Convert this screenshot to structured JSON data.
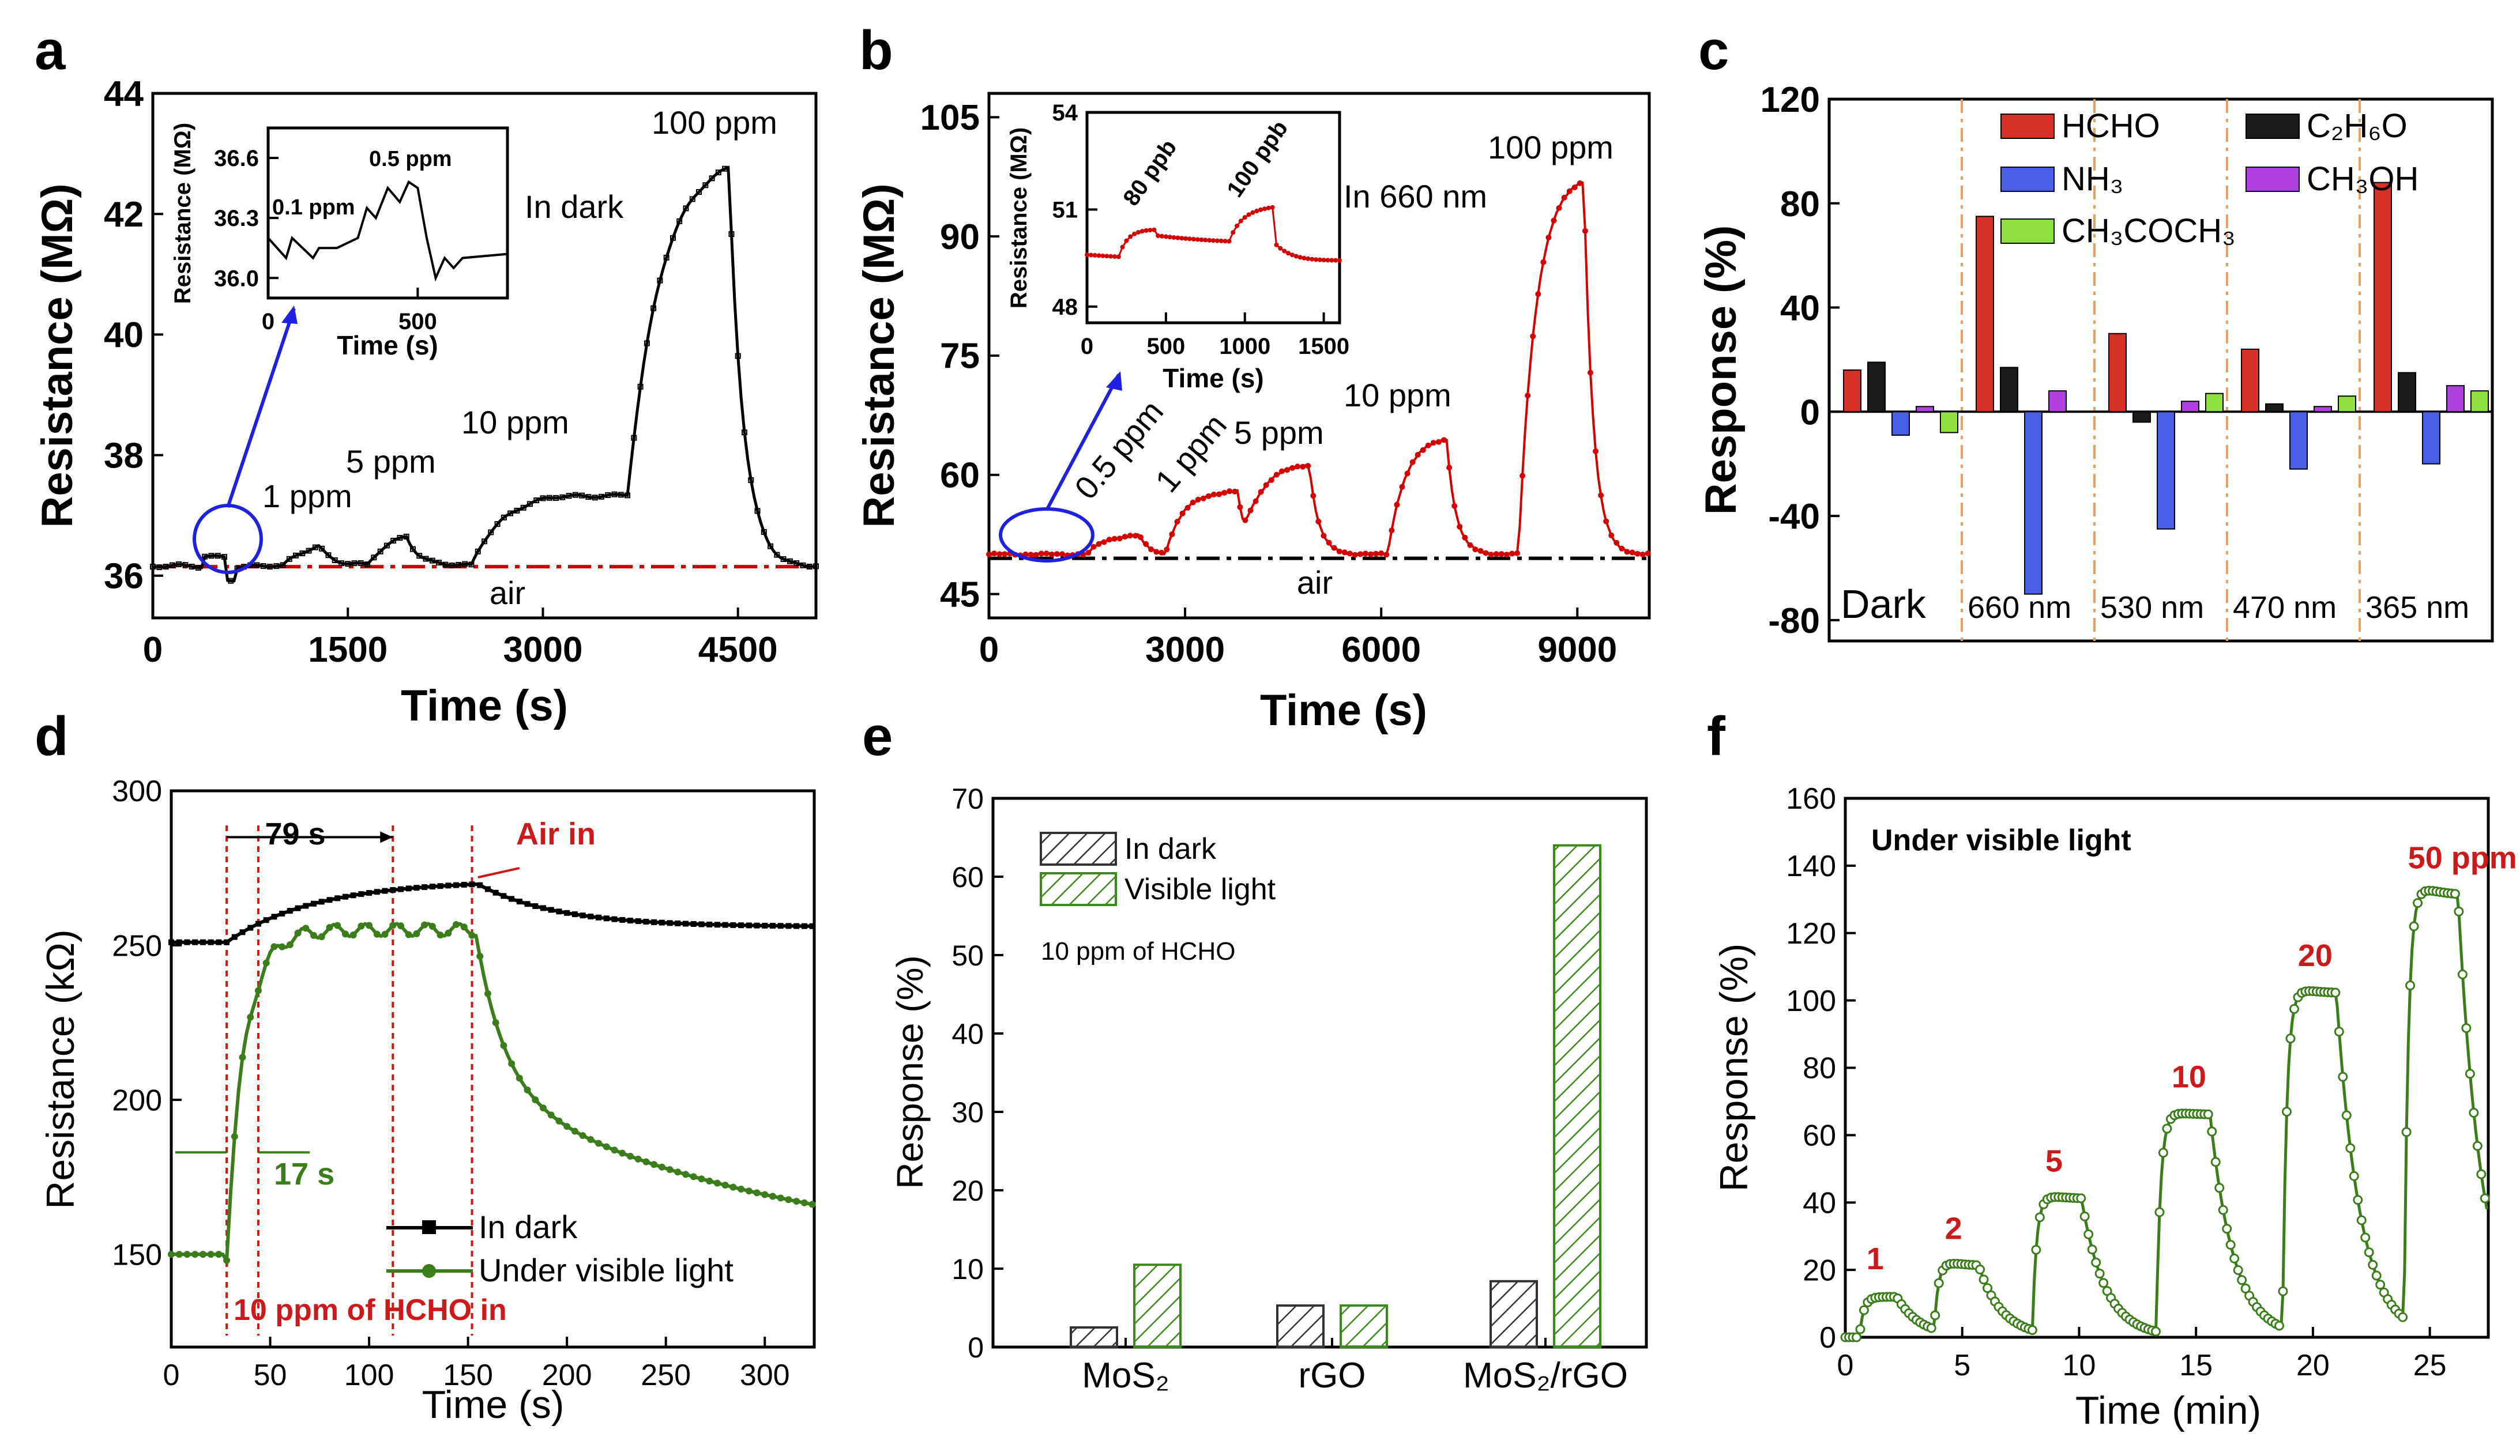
{
  "panel_letters": [
    "a",
    "b",
    "c",
    "d",
    "e",
    "f"
  ],
  "chart_data": [
    {
      "id": "a",
      "type": "line",
      "title": "",
      "xlabel": "Time (s)",
      "ylabel": "Resistance (MΩ)",
      "xlim": [
        0,
        5100
      ],
      "ylim": [
        35.3,
        44
      ],
      "xticks": [
        0,
        1500,
        3000,
        4500
      ],
      "yticks": [
        36,
        38,
        40,
        42,
        44
      ],
      "series_color": "#000000",
      "baseline": {
        "value": 36.15,
        "label": "air",
        "color": "#cc0000"
      },
      "annotations": [
        "1 ppm",
        "5 ppm",
        "10 ppm",
        "100 ppm",
        "In dark"
      ],
      "pulses": [
        {
          "t0": 1000,
          "t1": 1280,
          "peak": 0.5
        },
        {
          "t0": 1650,
          "t1": 1950,
          "peak": 0.7
        },
        {
          "t0": 2450,
          "t1": 3650,
          "peak": 1.2
        },
        {
          "t0": 3650,
          "t1": 4430,
          "peak": 6.8
        }
      ],
      "inset": {
        "xlabel": "Time (s)",
        "ylabel": "Resistance (MΩ)",
        "xlim": [
          0,
          800
        ],
        "ylim": [
          35.9,
          36.75
        ],
        "xticks": [
          0,
          500
        ],
        "yticks": [
          36.0,
          36.3,
          36.6
        ],
        "labels": [
          "0.1 ppm",
          "0.5 ppm"
        ]
      }
    },
    {
      "id": "b",
      "type": "line",
      "title": "",
      "xlabel": "Time (s)",
      "ylabel": "Resistance (MΩ)",
      "xlim": [
        0,
        10100
      ],
      "ylim": [
        42,
        108
      ],
      "xticks": [
        0,
        3000,
        6000,
        9000
      ],
      "yticks": [
        45,
        60,
        75,
        90,
        105
      ],
      "series_color": "#d40000",
      "baseline": {
        "value": 49.5,
        "label": "air",
        "color": "#000000"
      },
      "annotations": [
        "0.5 ppm",
        "1 ppm",
        "5 ppm",
        "10 ppm",
        "100 ppm",
        "In 660 nm"
      ],
      "pulses": [
        {
          "t0": 1500,
          "t1": 2300,
          "peak": 2.5
        },
        {
          "t0": 2700,
          "t1": 3800,
          "peak": 8
        },
        {
          "t0": 3900,
          "t1": 4900,
          "peak": 11.5
        },
        {
          "t0": 6100,
          "t1": 7000,
          "peak": 15
        },
        {
          "t0": 8100,
          "t1": 9100,
          "peak": 48
        }
      ],
      "inset": {
        "xlabel": "Time (s)",
        "ylabel": "Resistance (MΩ)",
        "xlim": [
          0,
          1600
        ],
        "ylim": [
          47.5,
          54
        ],
        "xticks": [
          0,
          500,
          1000,
          1500
        ],
        "yticks": [
          48,
          51,
          54
        ],
        "labels": [
          "80 ppb",
          "100 ppb"
        ]
      }
    },
    {
      "id": "c",
      "type": "bar",
      "title": "",
      "xlabel": "",
      "ylabel": "Response (%)",
      "ylim": [
        -88,
        120
      ],
      "yticks": [
        -80,
        -40,
        0,
        40,
        80,
        120
      ],
      "groups": [
        "Dark",
        "660 nm",
        "530 nm",
        "470 nm",
        "365 nm"
      ],
      "series": [
        {
          "name": "HCHO",
          "color": "#d73027",
          "values": [
            16,
            75,
            30,
            24,
            88
          ]
        },
        {
          "name": "C2H6O",
          "color": "#1a1a1a",
          "values": [
            19,
            17,
            -4,
            3,
            15
          ]
        },
        {
          "name": "NH3",
          "color": "#4a5fe8",
          "values": [
            -9,
            -70,
            -45,
            -22,
            -20
          ]
        },
        {
          "name": "CH3OH",
          "color": "#b040e0",
          "values": [
            2,
            8,
            4,
            2,
            10
          ]
        },
        {
          "name": "CH3COCH3",
          "color": "#90e040",
          "values": [
            -8,
            null,
            7,
            6,
            8
          ]
        }
      ],
      "legend_display": {
        "HCHO": "HCHO",
        "C2H6O": "C₂H₆O",
        "NH3": "NH₃",
        "CH3OH": "CH₃OH",
        "CH3COCH3": "CH₃COCH₃"
      }
    },
    {
      "id": "d",
      "type": "line",
      "title": "",
      "xlabel": "Time (s)",
      "ylabel": "Resistance (kΩ)",
      "xlim": [
        0,
        325
      ],
      "ylim": [
        120,
        300
      ],
      "xticks": [
        0,
        50,
        100,
        150,
        200,
        250,
        300
      ],
      "yticks": [
        150,
        200,
        250,
        300
      ],
      "series": [
        {
          "name": "In dark",
          "color": "#000000"
        },
        {
          "name": "Under visible light",
          "color": "#3a7d1a"
        }
      ],
      "annotations": [
        "79 s",
        "Air in",
        "17 s",
        "10 ppm of HCHO in"
      ]
    },
    {
      "id": "e",
      "type": "bar",
      "title": "",
      "xlabel": "",
      "ylabel": "Response (%)",
      "ylim": [
        0,
        70
      ],
      "yticks": [
        0,
        10,
        20,
        30,
        40,
        50,
        60,
        70
      ],
      "categories": [
        "MoS2",
        "rGO",
        "MoS2/rGO"
      ],
      "category_display": [
        "MoS₂",
        "rGO",
        "MoS₂/rGO"
      ],
      "series": [
        {
          "name": "In dark",
          "color": "#333333",
          "values": [
            2.5,
            5.3,
            8.4
          ]
        },
        {
          "name": "Visible light",
          "color": "#3a8a1a",
          "values": [
            10.5,
            5.3,
            64
          ]
        }
      ],
      "note": "10 ppm of HCHO"
    },
    {
      "id": "f",
      "type": "line",
      "title": "",
      "xlabel": "Time (min)",
      "ylabel": "Response (%)",
      "xlim": [
        0,
        27.5
      ],
      "ylim": [
        0,
        160
      ],
      "xticks": [
        0,
        5,
        10,
        15,
        20,
        25
      ],
      "yticks": [
        0,
        20,
        40,
        60,
        80,
        100,
        120,
        140,
        160
      ],
      "series_color": "#3a7d1a",
      "pulse_labels": [
        "1",
        "2",
        "5",
        "10",
        "20",
        "50 ppm"
      ],
      "pulses": [
        {
          "t0": 0.6,
          "t1": 2.2,
          "peak": 12
        },
        {
          "t0": 3.8,
          "t1": 5.7,
          "peak": 21
        },
        {
          "t0": 8.0,
          "t1": 10.1,
          "peak": 41
        },
        {
          "t0": 13.3,
          "t1": 15.6,
          "peak": 66
        },
        {
          "t0": 18.7,
          "t1": 21.0,
          "peak": 102
        },
        {
          "t0": 23.9,
          "t1": 26.2,
          "peak": 131
        }
      ],
      "annotation": "Under visible light"
    }
  ]
}
